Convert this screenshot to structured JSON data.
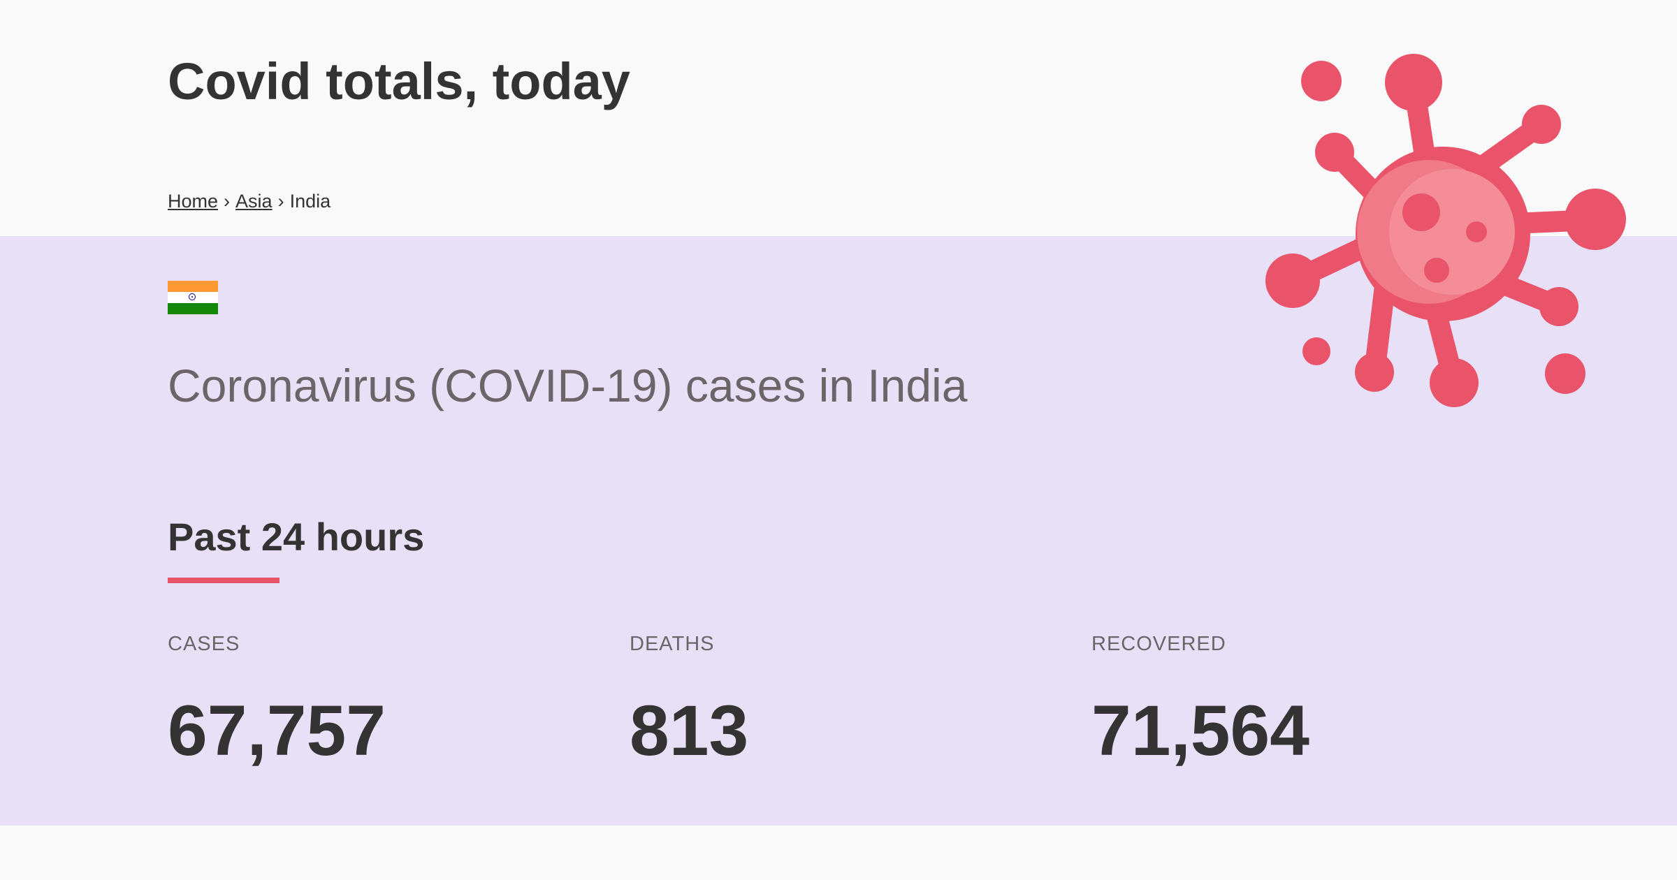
{
  "header": {
    "site_title": "Covid totals, today"
  },
  "breadcrumb": {
    "items": [
      "Home",
      "Asia",
      "India"
    ],
    "separator": "›"
  },
  "country": {
    "name": "India",
    "flag_icon": "india-flag-icon",
    "headline": "Coronavirus (COVID-19) cases in India"
  },
  "period": {
    "heading": "Past 24 hours"
  },
  "stats": [
    {
      "label": "CASES",
      "value": "67,757"
    },
    {
      "label": "DEATHS",
      "value": "813"
    },
    {
      "label": "RECOVERED",
      "value": "71,564"
    }
  ],
  "decoration": {
    "icon": "virus-icon"
  },
  "colors": {
    "background": "#f9f9f9",
    "band": "#e8e0f6",
    "accent": "#e9546b",
    "text_dark": "#333333",
    "text_muted": "#6b6468"
  }
}
